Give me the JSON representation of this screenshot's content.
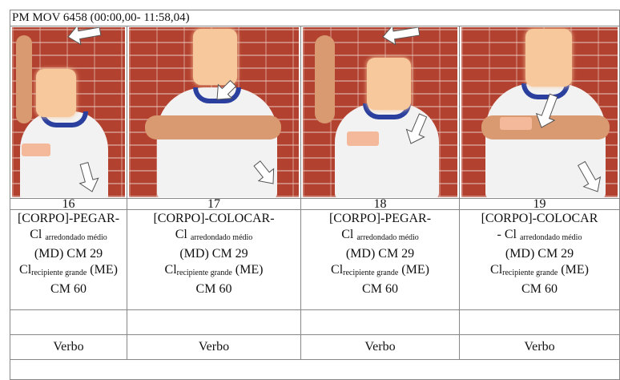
{
  "header": {
    "title": "PM MOV 6458 (00:00,00- 11:58,04)"
  },
  "columns": [
    {
      "number": "16",
      "line1": "[CORPO]-PEGAR-",
      "cl1": "Cl",
      "cl1_sub": "arredondado médio",
      "md": "(MD) CM 29",
      "cl2": "Cl",
      "cl2_sub": "recipiente grande",
      "me": "(ME)",
      "cm": "CM 60",
      "category": "Verbo"
    },
    {
      "number": "17",
      "line1": "[CORPO]-COLOCAR-",
      "cl1": "Cl",
      "cl1_sub": "arredondado médio",
      "md": "(MD) CM 29",
      "cl2": "Cl",
      "cl2_sub": "recipiente grande",
      "me": "(ME)",
      "cm": "CM 60",
      "category": "Verbo"
    },
    {
      "number": "18",
      "line1": "[CORPO]-PEGAR-",
      "cl1": "Cl",
      "cl1_sub": "arredondado médio",
      "md": "(MD) CM 29",
      "cl2": "Cl",
      "cl2_sub": "recipiente grande",
      "me": "(ME)",
      "cm": "CM 60",
      "category": "Verbo"
    },
    {
      "number": "19",
      "line1": "[CORPO]-COLOCAR",
      "cl1": "- Cl",
      "cl1_sub": "arredondado médio",
      "md": "(MD) CM 29",
      "cl2": "Cl",
      "cl2_sub": "recipiente grande",
      "me": "(ME)",
      "cm": "CM 60",
      "category": "Verbo"
    }
  ]
}
